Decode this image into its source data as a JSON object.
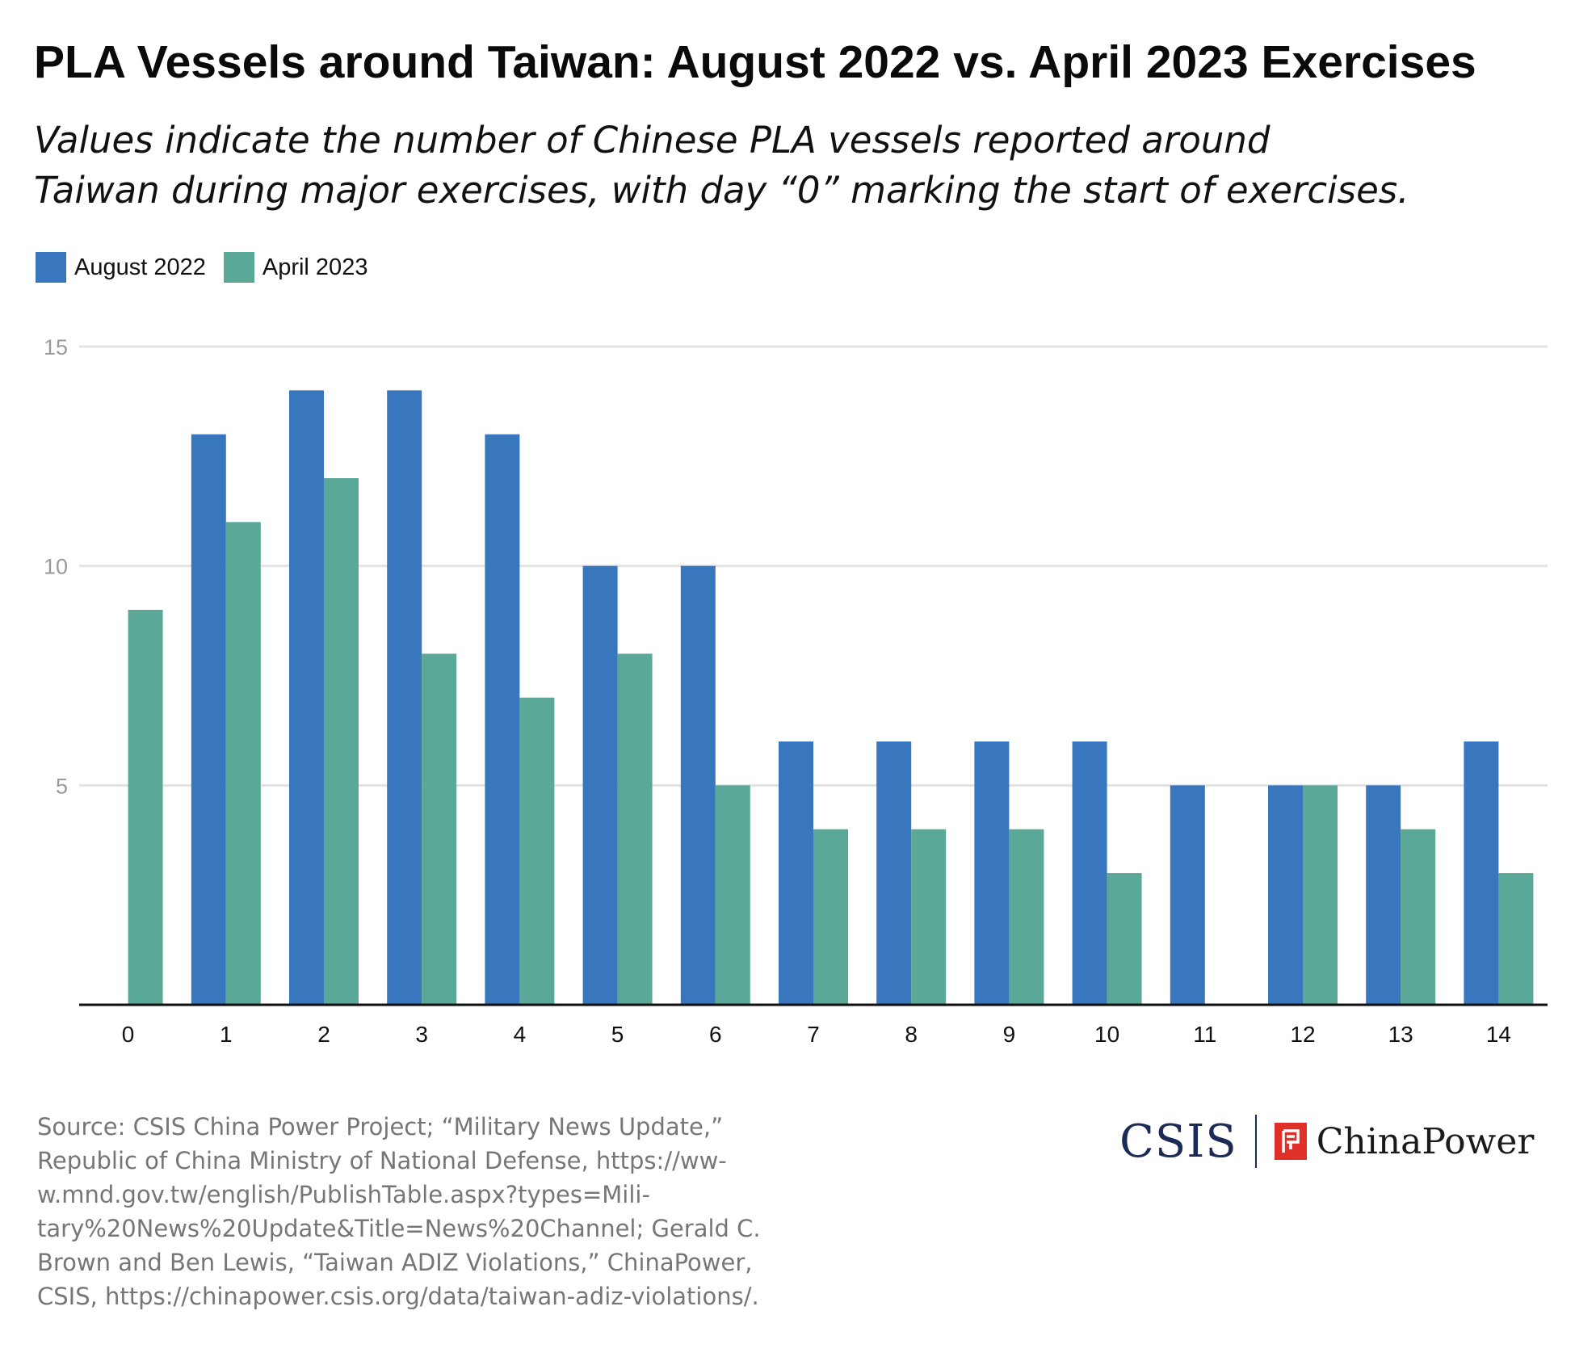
{
  "title": "PLA Vessels around Taiwan: August 2022 vs. April 2023 Exercises",
  "subtitle_lines": [
    "Values indicate the number of Chinese PLA vessels reported around",
    "Taiwan during major exercises, with day “0” marking the start of exercises."
  ],
  "legend": [
    {
      "label": "August 2022",
      "color": "#3877bd"
    },
    {
      "label": "April 2023",
      "color": "#5aa897"
    }
  ],
  "source_lines": [
    "Source: CSIS China Power Project; “Military News Update,”",
    "Republic of China Ministry of National Defense, https://ww-",
    "w.mnd.gov.tw/english/PublishTable.aspx?types=Mili-",
    "tary%20News%20Update&Title=News%20Channel; Gerald C.",
    "Brown and Ben Lewis, “Taiwan ADIZ Violations,” ChinaPower,",
    "CSIS, https://chinapower.csis.org/data/taiwan-adiz-violations/."
  ],
  "logo": {
    "csis": "CSIS",
    "chinapower": "ChinaPower"
  },
  "chart_data": {
    "type": "bar",
    "categories": [
      "0",
      "1",
      "2",
      "3",
      "4",
      "5",
      "6",
      "7",
      "8",
      "9",
      "10",
      "11",
      "12",
      "13",
      "14"
    ],
    "series": [
      {
        "name": "August 2022",
        "color": "#3877bd",
        "values": [
          0,
          13,
          14,
          14,
          13,
          10,
          10,
          6,
          6,
          6,
          6,
          5,
          5,
          5,
          6
        ]
      },
      {
        "name": "April 2023",
        "color": "#5aa897",
        "values": [
          9,
          11,
          12,
          8,
          7,
          8,
          5,
          4,
          4,
          4,
          3,
          0,
          5,
          4,
          3
        ]
      }
    ],
    "ylim": [
      0,
      15
    ],
    "yticks": [
      5,
      10,
      15
    ],
    "grid": true,
    "legend_position": "top-left",
    "xlabel": "",
    "ylabel": ""
  }
}
